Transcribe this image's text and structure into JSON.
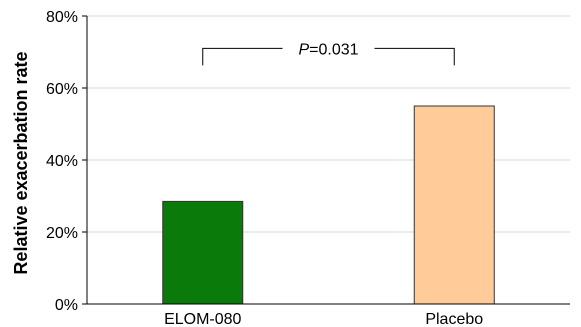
{
  "chart_data": {
    "type": "bar",
    "title": "",
    "xlabel": "",
    "ylabel": "Relative exacerbation rate",
    "categories": [
      "ELOM-080",
      "Placebo"
    ],
    "values": [
      28.5,
      55
    ],
    "ylim": [
      0,
      80
    ],
    "yticks": [
      0,
      20,
      40,
      60,
      80
    ],
    "ytick_labels": [
      "0%",
      "20%",
      "40%",
      "60%",
      "80%"
    ],
    "grid": true,
    "colors": [
      "#0a7a0a",
      "#ffcc99"
    ],
    "annotation": {
      "prefix": "P",
      "suffix": "=0.031",
      "between": [
        "ELOM-080",
        "Placebo"
      ],
      "level": 71
    }
  }
}
